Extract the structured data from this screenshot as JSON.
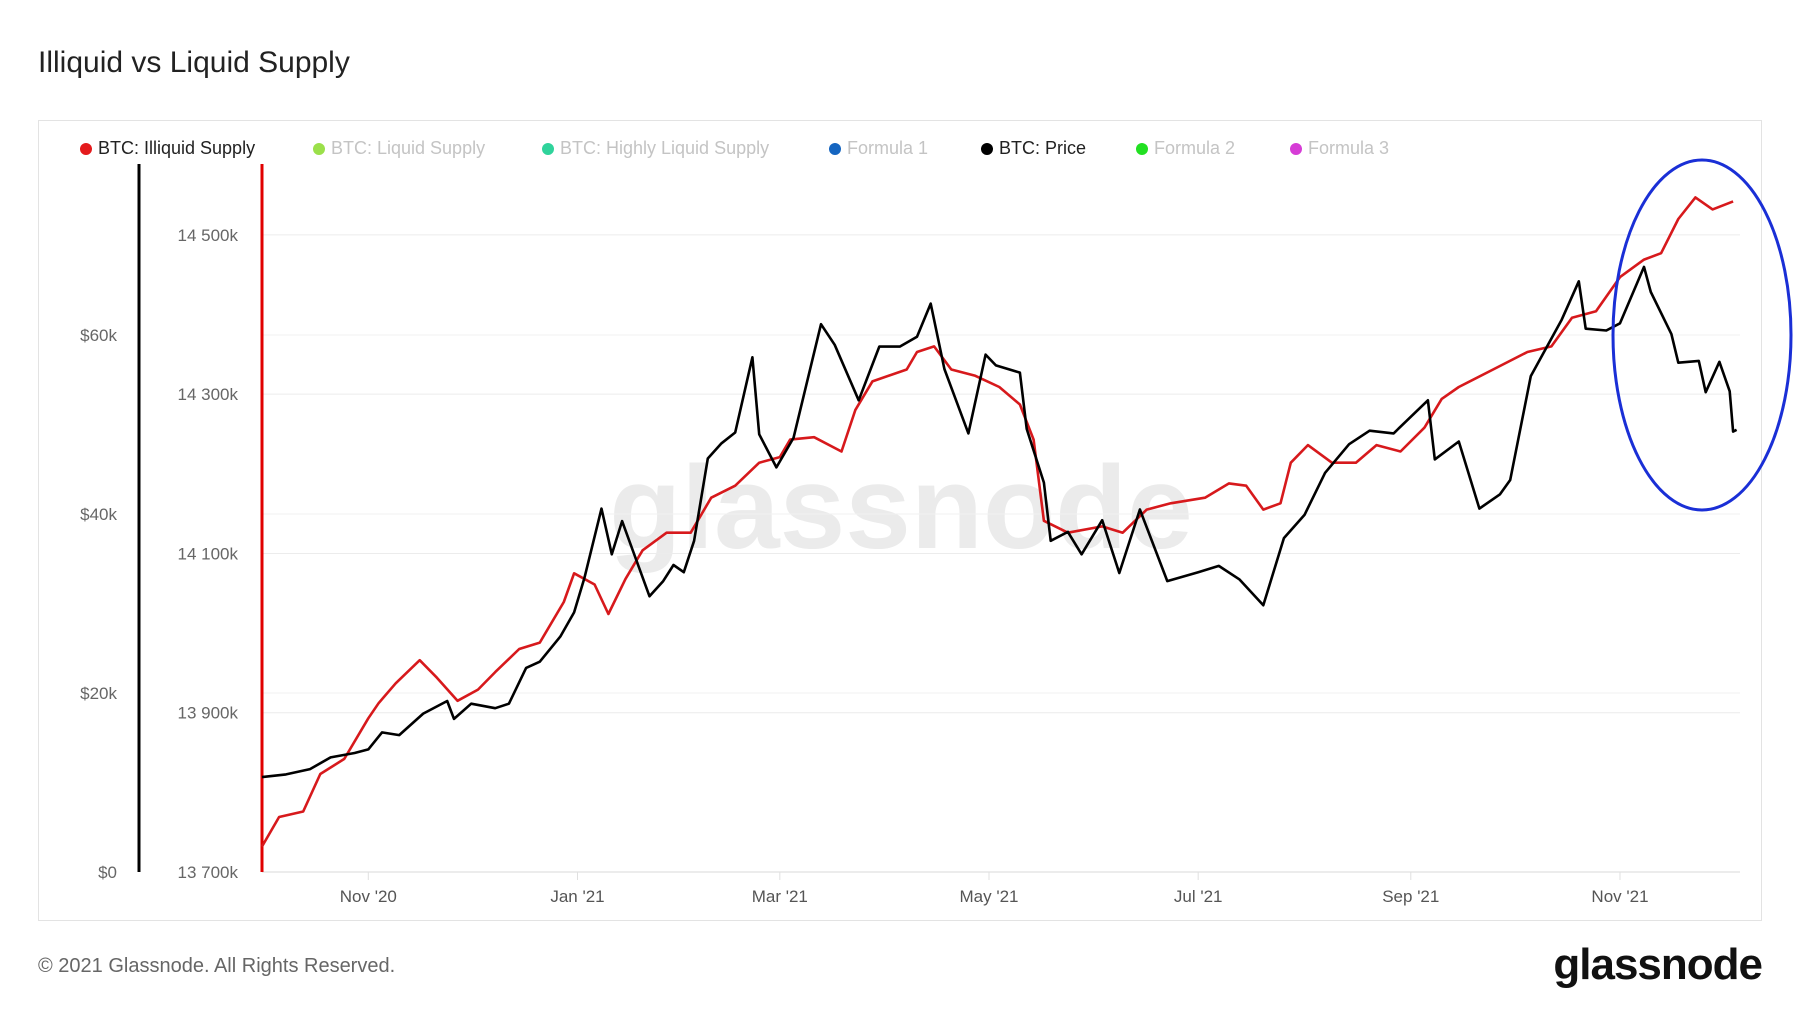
{
  "title": "Illiquid vs Liquid Supply",
  "footer": "© 2021 Glassnode. All Rights Reserved.",
  "logo": "glassnode",
  "watermark": "glassnode",
  "legend": [
    {
      "label": "BTC: Illiquid Supply",
      "color": "#e41a1c",
      "active": true
    },
    {
      "label": "BTC: Liquid Supply",
      "color": "#9be04a",
      "active": false
    },
    {
      "label": "BTC: Highly Liquid Supply",
      "color": "#2fd39b",
      "active": false
    },
    {
      "label": "Formula 1",
      "color": "#1565c0",
      "active": false
    },
    {
      "label": "BTC: Price",
      "color": "#000000",
      "active": true
    },
    {
      "label": "Formula 2",
      "color": "#22e022",
      "active": false
    },
    {
      "label": "Formula 3",
      "color": "#d63cd6",
      "active": false
    }
  ],
  "annotation": {
    "shape": "ellipse",
    "color": "#1a2fd6",
    "note": "circled region Nov '21 – Dec '21"
  },
  "chart_data": {
    "type": "line",
    "title": "Illiquid vs Liquid Supply",
    "x_range": [
      "2020-10-01",
      "2021-12-06"
    ],
    "x_ticks": [
      {
        "date": "2020-11-01",
        "label": "Nov '20"
      },
      {
        "date": "2021-01-01",
        "label": "Jan '21"
      },
      {
        "date": "2021-03-01",
        "label": "Mar '21"
      },
      {
        "date": "2021-05-01",
        "label": "May '21"
      },
      {
        "date": "2021-07-01",
        "label": "Jul '21"
      },
      {
        "date": "2021-09-01",
        "label": "Sep '21"
      },
      {
        "date": "2021-11-01",
        "label": "Nov '21"
      }
    ],
    "y_price": {
      "unit": "USD",
      "range": [
        0,
        79100
      ],
      "ticks": [
        {
          "v": 0,
          "label": "$0"
        },
        {
          "v": 20000,
          "label": "$20k"
        },
        {
          "v": 40000,
          "label": "$40k"
        },
        {
          "v": 60000,
          "label": "$60k"
        }
      ]
    },
    "y_supply": {
      "unit": "k BTC",
      "range": [
        13700,
        14589
      ],
      "ticks": [
        {
          "v": 13700,
          "label": "13 700k"
        },
        {
          "v": 13900,
          "label": "13 900k"
        },
        {
          "v": 14100,
          "label": "14 100k"
        },
        {
          "v": 14300,
          "label": "14 300k"
        },
        {
          "v": 14500,
          "label": "14 500k"
        }
      ]
    },
    "grid": true,
    "legend_position": "top-left",
    "series": [
      {
        "name": "BTC: Illiquid Supply",
        "axis": "supply",
        "color": "#d7191c",
        "points": [
          [
            "2020-10-01",
            13732
          ],
          [
            "2020-10-06",
            13769
          ],
          [
            "2020-10-13",
            13776
          ],
          [
            "2020-10-18",
            13823
          ],
          [
            "2020-10-25",
            13842
          ],
          [
            "2020-11-01",
            13893
          ],
          [
            "2020-11-04",
            13912
          ],
          [
            "2020-11-09",
            13937
          ],
          [
            "2020-11-16",
            13966
          ],
          [
            "2020-11-21",
            13944
          ],
          [
            "2020-11-27",
            13915
          ],
          [
            "2020-12-03",
            13929
          ],
          [
            "2020-12-08",
            13951
          ],
          [
            "2020-12-15",
            13980
          ],
          [
            "2020-12-21",
            13988
          ],
          [
            "2020-12-28",
            14039
          ],
          [
            "2020-12-31",
            14075
          ],
          [
            "2021-01-06",
            14061
          ],
          [
            "2021-01-10",
            14024
          ],
          [
            "2021-01-15",
            14068
          ],
          [
            "2021-01-20",
            14104
          ],
          [
            "2021-01-27",
            14126
          ],
          [
            "2021-02-03",
            14126
          ],
          [
            "2021-02-09",
            14170
          ],
          [
            "2021-02-16",
            14185
          ],
          [
            "2021-02-23",
            14214
          ],
          [
            "2021-03-01",
            14221
          ],
          [
            "2021-03-04",
            14243
          ],
          [
            "2021-03-11",
            14246
          ],
          [
            "2021-03-19",
            14228
          ],
          [
            "2021-03-23",
            14280
          ],
          [
            "2021-03-28",
            14316
          ],
          [
            "2021-04-07",
            14331
          ],
          [
            "2021-04-10",
            14353
          ],
          [
            "2021-04-15",
            14360
          ],
          [
            "2021-04-20",
            14331
          ],
          [
            "2021-04-27",
            14323
          ],
          [
            "2021-05-04",
            14309
          ],
          [
            "2021-05-10",
            14287
          ],
          [
            "2021-05-14",
            14243
          ],
          [
            "2021-05-17",
            14141
          ],
          [
            "2021-05-24",
            14126
          ],
          [
            "2021-06-03",
            14134
          ],
          [
            "2021-06-09",
            14126
          ],
          [
            "2021-06-16",
            14155
          ],
          [
            "2021-06-23",
            14163
          ],
          [
            "2021-07-03",
            14170
          ],
          [
            "2021-07-10",
            14188
          ],
          [
            "2021-07-15",
            14185
          ],
          [
            "2021-07-20",
            14155
          ],
          [
            "2021-07-25",
            14163
          ],
          [
            "2021-07-28",
            14214
          ],
          [
            "2021-08-02",
            14236
          ],
          [
            "2021-08-09",
            14214
          ],
          [
            "2021-08-16",
            14214
          ],
          [
            "2021-08-22",
            14236
          ],
          [
            "2021-08-29",
            14228
          ],
          [
            "2021-09-05",
            14258
          ],
          [
            "2021-09-10",
            14294
          ],
          [
            "2021-09-15",
            14309
          ],
          [
            "2021-09-25",
            14331
          ],
          [
            "2021-10-05",
            14353
          ],
          [
            "2021-10-12",
            14360
          ],
          [
            "2021-10-18",
            14396
          ],
          [
            "2021-10-25",
            14404
          ],
          [
            "2021-11-01",
            14447
          ],
          [
            "2021-11-08",
            14469
          ],
          [
            "2021-11-13",
            14477
          ],
          [
            "2021-11-18",
            14520
          ],
          [
            "2021-11-23",
            14547
          ],
          [
            "2021-11-28",
            14532
          ],
          [
            "2021-12-04",
            14542
          ]
        ]
      },
      {
        "name": "BTC: Price",
        "axis": "price",
        "color": "#000000",
        "points": [
          [
            "2020-10-01",
            10600
          ],
          [
            "2020-10-08",
            10900
          ],
          [
            "2020-10-15",
            11500
          ],
          [
            "2020-10-21",
            12800
          ],
          [
            "2020-10-28",
            13300
          ],
          [
            "2020-11-01",
            13700
          ],
          [
            "2020-11-05",
            15600
          ],
          [
            "2020-11-10",
            15300
          ],
          [
            "2020-11-17",
            17700
          ],
          [
            "2020-11-24",
            19100
          ],
          [
            "2020-11-26",
            17100
          ],
          [
            "2020-12-01",
            18800
          ],
          [
            "2020-12-08",
            18300
          ],
          [
            "2020-12-12",
            18800
          ],
          [
            "2020-12-17",
            22800
          ],
          [
            "2020-12-21",
            23500
          ],
          [
            "2020-12-27",
            26300
          ],
          [
            "2020-12-31",
            29000
          ],
          [
            "2021-01-03",
            32800
          ],
          [
            "2021-01-08",
            40600
          ],
          [
            "2021-01-11",
            35500
          ],
          [
            "2021-01-14",
            39200
          ],
          [
            "2021-01-22",
            30800
          ],
          [
            "2021-01-26",
            32500
          ],
          [
            "2021-01-29",
            34300
          ],
          [
            "2021-02-01",
            33500
          ],
          [
            "2021-02-04",
            37000
          ],
          [
            "2021-02-08",
            46200
          ],
          [
            "2021-02-12",
            47900
          ],
          [
            "2021-02-16",
            49100
          ],
          [
            "2021-02-21",
            57500
          ],
          [
            "2021-02-23",
            48900
          ],
          [
            "2021-02-28",
            45200
          ],
          [
            "2021-03-05",
            48500
          ],
          [
            "2021-03-13",
            61200
          ],
          [
            "2021-03-17",
            58900
          ],
          [
            "2021-03-24",
            52700
          ],
          [
            "2021-03-30",
            58700
          ],
          [
            "2021-04-05",
            58700
          ],
          [
            "2021-04-10",
            59800
          ],
          [
            "2021-04-14",
            63500
          ],
          [
            "2021-04-18",
            56200
          ],
          [
            "2021-04-25",
            49000
          ],
          [
            "2021-04-30",
            57800
          ],
          [
            "2021-05-03",
            56600
          ],
          [
            "2021-05-10",
            55800
          ],
          [
            "2021-05-12",
            49500
          ],
          [
            "2021-05-17",
            43500
          ],
          [
            "2021-05-19",
            37000
          ],
          [
            "2021-05-24",
            38000
          ],
          [
            "2021-05-28",
            35500
          ],
          [
            "2021-06-03",
            39300
          ],
          [
            "2021-06-08",
            33400
          ],
          [
            "2021-06-14",
            40500
          ],
          [
            "2021-06-22",
            32500
          ],
          [
            "2021-07-01",
            33500
          ],
          [
            "2021-07-07",
            34200
          ],
          [
            "2021-07-13",
            32700
          ],
          [
            "2021-07-20",
            29800
          ],
          [
            "2021-07-26",
            37300
          ],
          [
            "2021-08-01",
            39900
          ],
          [
            "2021-08-07",
            44600
          ],
          [
            "2021-08-14",
            47800
          ],
          [
            "2021-08-20",
            49300
          ],
          [
            "2021-08-27",
            49000
          ],
          [
            "2021-09-06",
            52700
          ],
          [
            "2021-09-08",
            46100
          ],
          [
            "2021-09-15",
            48100
          ],
          [
            "2021-09-21",
            40600
          ],
          [
            "2021-09-27",
            42200
          ],
          [
            "2021-09-30",
            43800
          ],
          [
            "2021-10-06",
            55400
          ],
          [
            "2021-10-15",
            61700
          ],
          [
            "2021-10-20",
            66000
          ],
          [
            "2021-10-22",
            60700
          ],
          [
            "2021-10-28",
            60500
          ],
          [
            "2021-11-01",
            61300
          ],
          [
            "2021-11-08",
            67600
          ],
          [
            "2021-11-10",
            64800
          ],
          [
            "2021-11-16",
            60100
          ],
          [
            "2021-11-18",
            56900
          ],
          [
            "2021-11-24",
            57100
          ],
          [
            "2021-11-26",
            53600
          ],
          [
            "2021-11-30",
            57000
          ],
          [
            "2021-12-03",
            53700
          ],
          [
            "2021-12-04",
            49200
          ],
          [
            "2021-12-05",
            49400
          ]
        ]
      }
    ]
  }
}
